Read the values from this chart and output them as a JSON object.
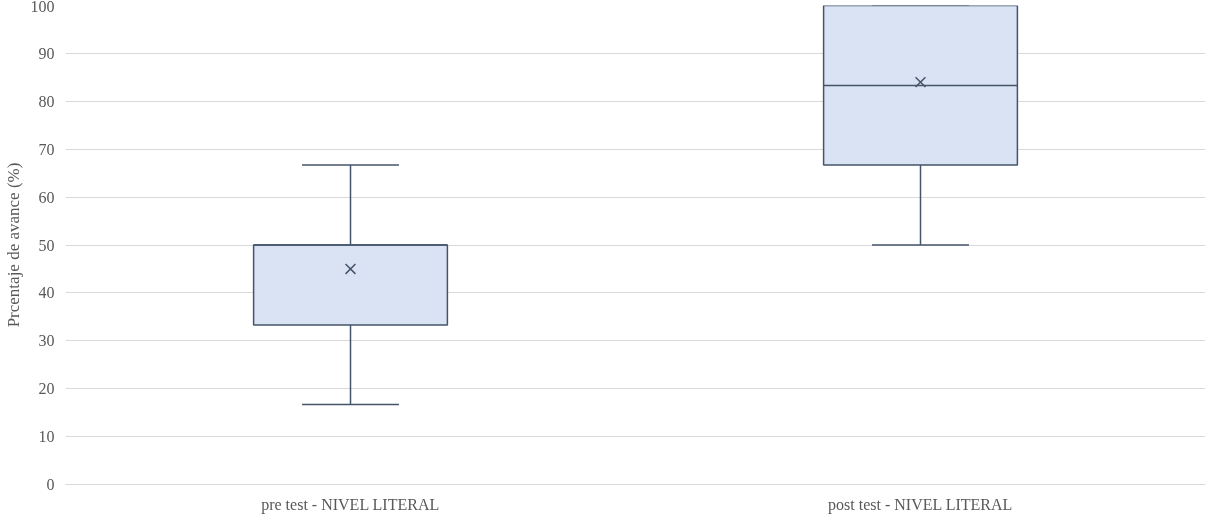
{
  "chart_data": {
    "type": "box",
    "ylabel": "Prcentaje de avance (%)",
    "categories": [
      "pre test - NIVEL LITERAL",
      "post test - NIVEL LITERAL"
    ],
    "series": [
      {
        "color": "#dae3f3",
        "boxes": [
          {
            "low": 16.7,
            "q1": 33.3,
            "median": 50,
            "q3": 50,
            "high": 66.7,
            "mean": 45
          },
          {
            "low": 50,
            "q1": 66.7,
            "median": 83.3,
            "q3": 100,
            "high": 100,
            "mean": 84
          }
        ]
      }
    ],
    "ylim": [
      0,
      100
    ],
    "yticks": [
      0,
      10,
      20,
      30,
      40,
      50,
      60,
      70,
      80,
      90,
      100
    ],
    "grid": "y"
  }
}
